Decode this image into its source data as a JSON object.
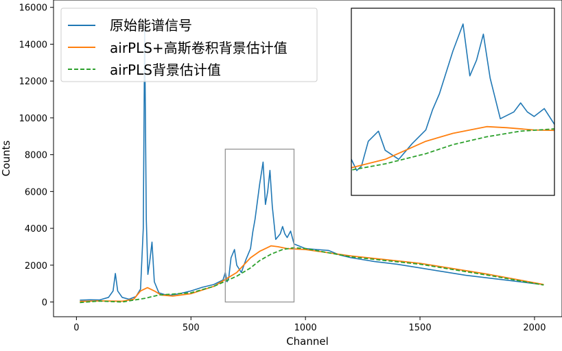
{
  "chart_data": {
    "type": "line",
    "xlabel": "Channel",
    "ylabel": "Counts",
    "xlim": [
      -100,
      2120
    ],
    "ylim": [
      -800,
      16400
    ],
    "xticks": [
      0,
      500,
      1000,
      1500,
      2000
    ],
    "yticks": [
      0,
      2000,
      4000,
      6000,
      8000,
      10000,
      12000,
      14000,
      16000
    ],
    "grid": false,
    "legend_position": "top-left",
    "series": [
      {
        "name": "原始能谱信号",
        "color": "#1f77b4",
        "style": "solid",
        "x": [
          15,
          60,
          100,
          140,
          160,
          170,
          180,
          200,
          230,
          260,
          280,
          292,
          298,
          305,
          312,
          320,
          330,
          340,
          360,
          400,
          450,
          500,
          550,
          600,
          640,
          650,
          658,
          665,
          675,
          690,
          700,
          720,
          740,
          760,
          770,
          780,
          800,
          815,
          825,
          835,
          845,
          855,
          870,
          890,
          900,
          910,
          920,
          935,
          950,
          1000,
          1050,
          1100,
          1150,
          1200,
          1300,
          1400,
          1500,
          1600,
          1700,
          1800,
          1900,
          2000,
          2040
        ],
        "y": [
          100,
          120,
          110,
          250,
          600,
          1550,
          600,
          250,
          150,
          300,
          700,
          4000,
          14800,
          4500,
          1500,
          2200,
          3250,
          1100,
          500,
          350,
          450,
          600,
          800,
          950,
          1200,
          1600,
          1100,
          1300,
          2400,
          2850,
          2000,
          1600,
          2300,
          2900,
          3800,
          4500,
          6400,
          7600,
          5300,
          6000,
          7150,
          5200,
          3400,
          3700,
          4100,
          3700,
          3500,
          3850,
          3150,
          2900,
          2850,
          2800,
          2550,
          2400,
          2200,
          2050,
          1850,
          1650,
          1450,
          1300,
          1150,
          1000,
          950
        ]
      },
      {
        "name": "airPLS+高斯卷积背景估计值",
        "color": "#ff7f0e",
        "style": "solid",
        "x": [
          15,
          100,
          200,
          250,
          280,
          310,
          340,
          370,
          420,
          500,
          600,
          700,
          760,
          800,
          850,
          880,
          920,
          1000,
          1200,
          1500,
          1800,
          2040
        ],
        "y": [
          30,
          60,
          40,
          150,
          600,
          780,
          600,
          380,
          320,
          450,
          850,
          1600,
          2400,
          2750,
          3050,
          3000,
          2900,
          2850,
          2500,
          2100,
          1500,
          950
        ]
      },
      {
        "name": "airPLS背景估计值",
        "color": "#2ca02c",
        "style": "dashed",
        "x": [
          15,
          100,
          200,
          300,
          360,
          420,
          500,
          600,
          700,
          760,
          800,
          850,
          900,
          950,
          1000,
          1200,
          1500,
          1800,
          2040
        ],
        "y": [
          -30,
          50,
          0,
          200,
          380,
          430,
          500,
          850,
          1400,
          1850,
          2250,
          2600,
          2850,
          2950,
          2900,
          2450,
          2050,
          1450,
          920
        ]
      }
    ],
    "inset": {
      "xlim": [
        650,
        950
      ],
      "ylim": [
        0,
        8300
      ]
    }
  }
}
